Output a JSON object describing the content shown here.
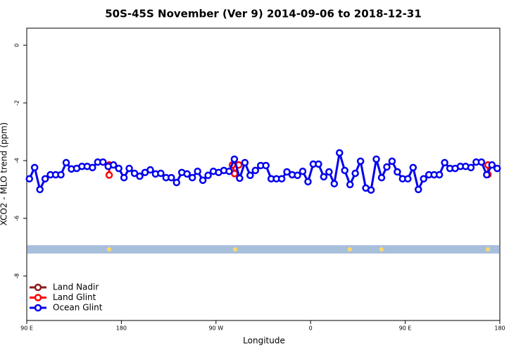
{
  "chart_data": {
    "type": "line",
    "title": "50S-45S November (Ver 9)   2014-09-06 to 2018-12-31",
    "xlabel": "Longitude",
    "ylabel": "XCO2 - MLO trend (ppm)",
    "xlim": [
      90,
      540
    ],
    "ylim": [
      -9.54,
      0.59
    ],
    "xticks": [
      {
        "value": 90,
        "label": "90 E"
      },
      {
        "value": 180,
        "label": "180"
      },
      {
        "value": 270,
        "label": "90 W"
      },
      {
        "value": 360,
        "label": "0"
      },
      {
        "value": 450,
        "label": "90 E"
      },
      {
        "value": 540,
        "label": "180"
      }
    ],
    "yticks": [
      0,
      -2,
      -4,
      -6,
      -8
    ],
    "legend": "bottom-left",
    "band": {
      "range": [
        -7.22,
        -6.93
      ],
      "color": "#a8bfdc",
      "marker_color": "#ffd966",
      "markers_x": [
        168.4,
        288.3,
        397.2,
        427.4,
        528.7
      ]
    },
    "series": [
      {
        "name": "Land Nadir",
        "color": "#8b1a1a",
        "x": [],
        "values": []
      },
      {
        "name": "Land Glint",
        "color": "#ff0000",
        "x": [
          168.4,
          168.4,
          null,
          285.6,
          287.7,
          291.7,
          null,
          528.7,
          528.7
        ],
        "values": [
          -4.15,
          -4.5,
          null,
          -4.15,
          -4.45,
          -4.15,
          null,
          -4.15,
          -4.48
        ]
      },
      {
        "name": "Ocean Glint",
        "color": "#0000ee",
        "x": [
          92.5,
          97.5,
          102.5,
          107.5,
          112.5,
          117.5,
          122.5,
          127.5,
          132.5,
          137.5,
          142.5,
          147.5,
          152.5,
          157.5,
          162.5,
          167.5,
          172.5,
          177.5,
          182.5,
          187.5,
          192.5,
          197.5,
          202.5,
          207.5,
          212.5,
          217.5,
          222.5,
          227.5,
          232.5,
          237.5,
          242.5,
          247.5,
          252.5,
          257.5,
          262.5,
          267.5,
          272.5,
          277.5,
          282.5,
          287.5,
          292.5,
          297.5,
          302.5,
          307.5,
          312.5,
          317.5,
          322.5,
          327.5,
          332.5,
          337.5,
          342.5,
          347.5,
          352.5,
          357.5,
          362.5,
          367.5,
          372.5,
          377.5,
          382.5,
          387.5,
          392.5,
          397.5,
          402.5,
          407.5,
          412.5,
          417.5,
          422.5,
          427.5,
          432.5,
          437.5,
          442.5,
          447.5,
          452.5,
          457.5,
          462.5,
          467.5,
          472.5,
          477.5,
          482.5,
          487.5,
          492.5,
          497.5,
          502.5,
          507.5,
          512.5,
          517.5,
          522.5,
          527.5,
          532.5,
          537.5
        ],
        "values": [
          -4.63,
          -4.24,
          -5.0,
          -4.63,
          -4.49,
          -4.49,
          -4.49,
          -4.07,
          -4.29,
          -4.27,
          -4.2,
          -4.2,
          -4.24,
          -4.05,
          -4.05,
          -4.2,
          -4.15,
          -4.27,
          -4.59,
          -4.27,
          -4.44,
          -4.54,
          -4.41,
          -4.32,
          -4.46,
          -4.44,
          -4.59,
          -4.59,
          -4.76,
          -4.41,
          -4.46,
          -4.59,
          -4.37,
          -4.68,
          -4.51,
          -4.37,
          -4.41,
          -4.34,
          -4.37,
          -3.95,
          -4.61,
          -4.07,
          -4.51,
          -4.34,
          -4.17,
          -4.17,
          -4.63,
          -4.63,
          -4.63,
          -4.39,
          -4.49,
          -4.51,
          -4.37,
          -4.73,
          -4.12,
          -4.12,
          -4.56,
          -4.39,
          -4.8,
          -3.73,
          -4.34,
          -4.83,
          -4.44,
          -4.02,
          -4.95,
          -5.02,
          -3.95,
          -4.59,
          -4.22,
          -4.02,
          -4.39,
          -4.63,
          -4.63,
          -4.24,
          -5.0,
          -4.63,
          -4.49,
          -4.49,
          -4.49,
          -4.07,
          -4.27,
          -4.27,
          -4.2,
          -4.2,
          -4.24,
          -4.05,
          -4.05,
          -4.49,
          -4.15,
          -4.27
        ]
      }
    ]
  }
}
